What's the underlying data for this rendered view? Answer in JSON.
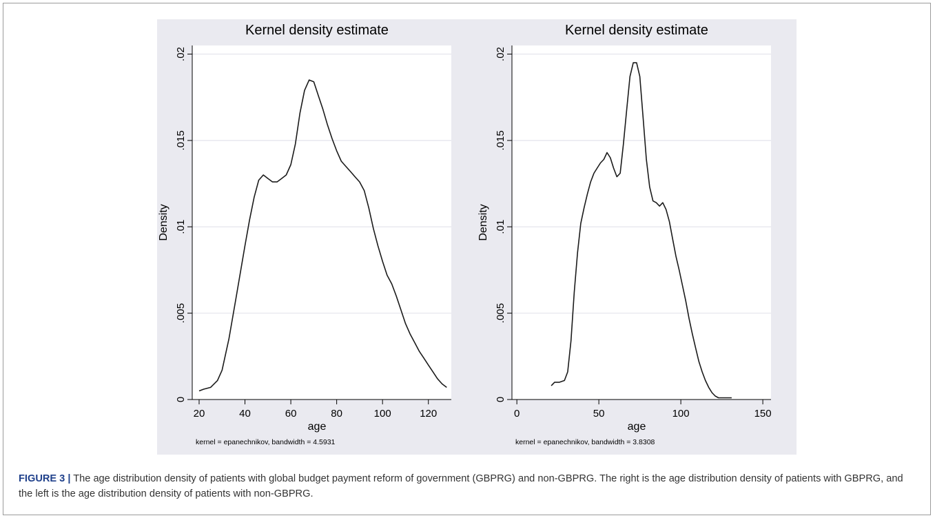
{
  "caption": {
    "label": "FIGURE 3 |",
    "text": " The age distribution density of patients with global budget payment reform of government (GBPRG) and non-GBPRG. The right is the age distribution density of patients with GBPRG, and the left is the age distribution density of patients with non-GBPRG."
  },
  "colors": {
    "panel_bg": "#eaeaf0",
    "plot_bg": "#ffffff",
    "grid": "#eaeaf0",
    "line": "#1a1a1a"
  },
  "chart_data": [
    {
      "type": "line",
      "title": "Kernel density estimate",
      "xlabel": "age",
      "ylabel": "Density",
      "note": "kernel = epanechnikov, bandwidth = 4.5931",
      "xlim": [
        17,
        130
      ],
      "ylim": [
        0,
        0.0205
      ],
      "xticks": [
        20,
        40,
        60,
        80,
        100,
        120
      ],
      "yticks": [
        0,
        0.005,
        0.01,
        0.015,
        0.02
      ],
      "ytick_labels": [
        "0",
        ".005",
        ".01",
        ".015",
        ".02"
      ],
      "grid": true,
      "series": [
        {
          "x": [
            20,
            22,
            25,
            28,
            30,
            33,
            36,
            40,
            42,
            44,
            46,
            48,
            50,
            52,
            54,
            56,
            58,
            60,
            62,
            64,
            66,
            68,
            70,
            72,
            74,
            76,
            78,
            80,
            82,
            84,
            86,
            88,
            90,
            92,
            94,
            96,
            98,
            100,
            102,
            104,
            106,
            108,
            110,
            112,
            114,
            116,
            118,
            120,
            122,
            124,
            126,
            128
          ],
          "y": [
            0.0005,
            0.0006,
            0.0007,
            0.0011,
            0.0017,
            0.0035,
            0.0058,
            0.0089,
            0.0104,
            0.0117,
            0.0127,
            0.013,
            0.0128,
            0.0126,
            0.0126,
            0.0128,
            0.013,
            0.0136,
            0.0148,
            0.0166,
            0.0179,
            0.0185,
            0.0184,
            0.0176,
            0.0168,
            0.0159,
            0.0151,
            0.0144,
            0.0138,
            0.0135,
            0.0132,
            0.0129,
            0.0126,
            0.0121,
            0.0111,
            0.0099,
            0.0089,
            0.008,
            0.0072,
            0.0067,
            0.006,
            0.0052,
            0.0044,
            0.0038,
            0.0033,
            0.0028,
            0.0024,
            0.002,
            0.0016,
            0.0012,
            0.0009,
            0.0007
          ]
        }
      ]
    },
    {
      "type": "line",
      "title": "Kernel density estimate",
      "xlabel": "age",
      "ylabel": "Density",
      "note": "kernel = epanechnikov, bandwidth = 3.8308",
      "xlim": [
        -3,
        155
      ],
      "ylim": [
        0,
        0.0205
      ],
      "xticks": [
        0,
        50,
        100,
        150
      ],
      "yticks": [
        0,
        0.005,
        0.01,
        0.015,
        0.02
      ],
      "ytick_labels": [
        "0",
        ".005",
        ".01",
        ".015",
        ".02"
      ],
      "grid": true,
      "series": [
        {
          "x": [
            21,
            23,
            26,
            29,
            31,
            33,
            35,
            37,
            39,
            41,
            43,
            45,
            47,
            49,
            51,
            53,
            55,
            57,
            59,
            61,
            63,
            65,
            67,
            69,
            71,
            73,
            75,
            77,
            79,
            81,
            83,
            85,
            87,
            89,
            91,
            93,
            95,
            97,
            99,
            101,
            103,
            105,
            107,
            109,
            111,
            113,
            115,
            117,
            119,
            121,
            123,
            125,
            127,
            129,
            131
          ],
          "y": [
            0.0008,
            0.001,
            0.001,
            0.0011,
            0.0016,
            0.0034,
            0.0062,
            0.0085,
            0.0102,
            0.0111,
            0.0119,
            0.0126,
            0.0131,
            0.0134,
            0.0137,
            0.0139,
            0.0143,
            0.014,
            0.0134,
            0.0129,
            0.0131,
            0.0148,
            0.0168,
            0.0187,
            0.0195,
            0.0195,
            0.0187,
            0.0163,
            0.0139,
            0.0123,
            0.0115,
            0.0114,
            0.0112,
            0.0114,
            0.011,
            0.0103,
            0.0093,
            0.0083,
            0.0075,
            0.0066,
            0.0057,
            0.0047,
            0.0038,
            0.003,
            0.0022,
            0.0016,
            0.0011,
            0.0007,
            0.0004,
            0.0002,
            0.0001,
            0.0001,
            0.0001,
            0.0001,
            0.0001
          ]
        }
      ]
    }
  ]
}
